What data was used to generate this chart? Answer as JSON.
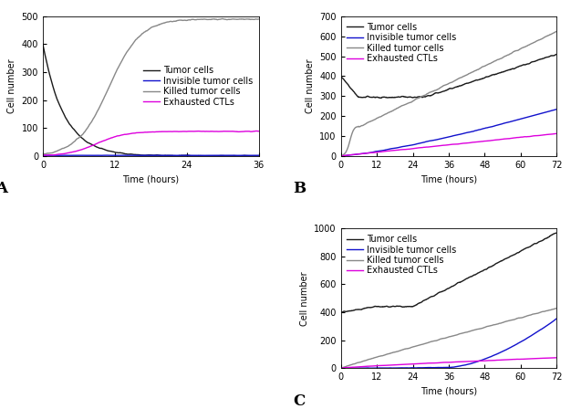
{
  "panel_A": {
    "time_end": 36,
    "xlim": [
      0,
      36
    ],
    "ylim": [
      0,
      500
    ],
    "yticks": [
      0,
      100,
      200,
      300,
      400,
      500
    ],
    "xticks": [
      0,
      12,
      24,
      36
    ],
    "xlabel": "Time (hours)",
    "ylabel": "Cell number",
    "label": "A",
    "legend_loc": "center right",
    "legend_bbox": null
  },
  "panel_B": {
    "time_end": 72,
    "xlim": [
      0,
      72
    ],
    "ylim": [
      0,
      700
    ],
    "yticks": [
      0,
      100,
      200,
      300,
      400,
      500,
      600,
      700
    ],
    "xticks": [
      0,
      12,
      24,
      36,
      48,
      60,
      72
    ],
    "xlabel": "Time (hours)",
    "ylabel": "Cell number",
    "label": "B",
    "legend_loc": "upper left",
    "legend_bbox": null
  },
  "panel_C": {
    "time_end": 72,
    "xlim": [
      0,
      72
    ],
    "ylim": [
      0,
      1000
    ],
    "yticks": [
      0,
      200,
      400,
      600,
      800,
      1000
    ],
    "xticks": [
      0,
      12,
      24,
      36,
      48,
      60,
      72
    ],
    "xlabel": "Time (hours)",
    "ylabel": "Cell number",
    "label": "C",
    "legend_loc": "upper left",
    "legend_bbox": null
  },
  "colors": {
    "tumor": "#1a1a1a",
    "invisible": "#1111cc",
    "killed": "#888888",
    "exhausted": "#dd00dd"
  },
  "labels": {
    "tumor": "Tumor cells",
    "invisible": "Invisible tumor cells",
    "killed": "Killed tumor cells",
    "exhausted": "Exhausted CTLs"
  },
  "fig_background": "#ffffff",
  "axes_background": "#ffffff",
  "linewidth": 1.0,
  "fontsize_label": 7,
  "fontsize_tick": 7,
  "fontsize_legend": 7,
  "fontsize_panel_label": 12
}
